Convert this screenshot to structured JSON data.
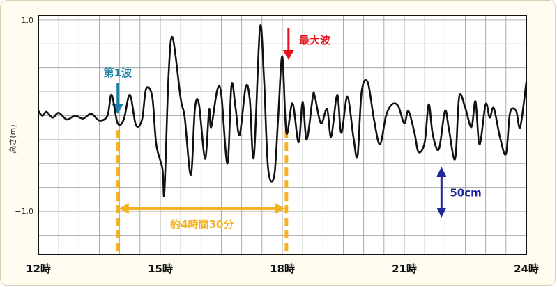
{
  "chart_data": {
    "type": "line",
    "ylabel": "高さ(m)",
    "x_unit": "hours",
    "xlim": [
      12,
      24
    ],
    "ylim": [
      -1.45,
      1.05
    ],
    "grid": true,
    "x_ticks": [
      {
        "value": 12,
        "label": "12時"
      },
      {
        "value": 15,
        "label": "15時"
      },
      {
        "value": 18,
        "label": "18時"
      },
      {
        "value": 21,
        "label": "21時"
      },
      {
        "value": 24,
        "label": "24時"
      }
    ],
    "y_ticks": [
      {
        "value": 1.0,
        "label": "1.0"
      },
      {
        "value": -1.0,
        "label": "−1.0"
      }
    ],
    "series": [
      {
        "color": "#111111",
        "x": [
          12.0,
          12.1,
          12.2,
          12.35,
          12.5,
          12.7,
          12.9,
          13.1,
          13.3,
          13.5,
          13.7,
          13.8,
          13.95,
          14.1,
          14.25,
          14.4,
          14.55,
          14.65,
          14.8,
          14.9,
          15.05,
          15.1,
          15.2,
          15.3,
          15.5,
          15.6,
          15.75,
          15.85,
          15.95,
          16.1,
          16.2,
          16.25,
          16.4,
          16.5,
          16.65,
          16.75,
          16.85,
          16.95,
          17.1,
          17.2,
          17.3,
          17.45,
          17.55,
          17.65,
          17.8,
          17.9,
          18.0,
          18.1,
          18.25,
          18.4,
          18.5,
          18.6,
          18.75,
          18.8,
          18.95,
          19.1,
          19.2,
          19.35,
          19.45,
          19.6,
          19.75,
          19.85,
          19.95,
          20.1,
          20.25,
          20.4,
          20.55,
          20.7,
          20.85,
          21.0,
          21.1,
          21.25,
          21.35,
          21.5,
          21.6,
          21.7,
          21.85,
          22.0,
          22.1,
          22.25,
          22.35,
          22.5,
          22.65,
          22.75,
          22.85,
          23.0,
          23.1,
          23.2,
          23.35,
          23.5,
          23.6,
          23.75,
          23.85,
          24.0
        ],
        "y": [
          0.05,
          0.0,
          0.04,
          -0.02,
          0.03,
          -0.04,
          0.0,
          -0.03,
          0.02,
          -0.05,
          0.0,
          0.22,
          -0.08,
          -0.04,
          0.22,
          -0.1,
          -0.04,
          0.28,
          0.2,
          -0.3,
          -0.55,
          -0.8,
          0.4,
          0.82,
          0.18,
          -0.02,
          -0.62,
          0.07,
          0.12,
          -0.45,
          0.06,
          -0.12,
          0.27,
          0.22,
          -0.5,
          0.32,
          0.08,
          -0.2,
          0.3,
          0.17,
          -0.43,
          0.92,
          0.38,
          -0.55,
          -0.63,
          0.0,
          0.62,
          -0.18,
          0.13,
          -0.28,
          0.14,
          -0.25,
          0.2,
          0.2,
          -0.08,
          0.07,
          -0.22,
          0.22,
          -0.18,
          0.2,
          -0.23,
          -0.42,
          0.25,
          0.35,
          -0.03,
          -0.3,
          0.0,
          0.12,
          0.1,
          -0.08,
          0.05,
          -0.18,
          -0.38,
          -0.28,
          0.12,
          -0.2,
          -0.35,
          0.05,
          -0.15,
          -0.45,
          0.2,
          0.08,
          -0.12,
          0.15,
          -0.3,
          0.12,
          -0.02,
          0.08,
          -0.22,
          -0.4,
          0.03,
          0.05,
          -0.12,
          0.35
        ]
      }
    ],
    "annotations": {
      "first_wave": {
        "label": "第1波",
        "x": 13.95,
        "color": "#1a7fa8"
      },
      "max_wave": {
        "label": "最大波",
        "x": 18.1,
        "color": "#e8101b"
      },
      "interval": {
        "label": "約4時間30分",
        "from": 13.95,
        "to": 18.1,
        "color": "#f5b324"
      },
      "scale_bar": {
        "label": "50cm",
        "value_m": 0.5,
        "x": 22.0,
        "color": "#20279a"
      }
    }
  }
}
